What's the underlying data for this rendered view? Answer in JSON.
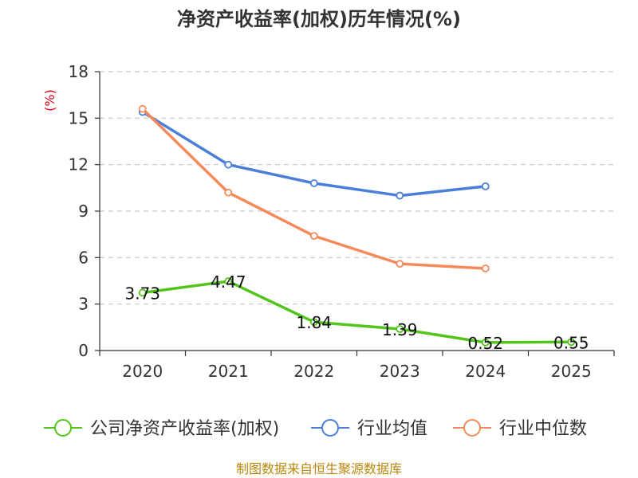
{
  "chart_data": {
    "type": "line",
    "title": "净资产收益率(加权)历年情况(%)",
    "ylabel": "(%)",
    "xlabel": "",
    "categories": [
      "2020",
      "2021",
      "2022",
      "2023",
      "2024",
      "2025"
    ],
    "y_ticks": [
      0,
      3,
      6,
      9,
      12,
      15,
      18
    ],
    "ylim": [
      0,
      18
    ],
    "grid": true,
    "legend_position": "bottom",
    "series": [
      {
        "name": "公司净资产收益率(加权)",
        "color": "#52c41a",
        "values": [
          3.73,
          4.47,
          1.84,
          1.39,
          0.52,
          0.55
        ],
        "labels": [
          "3.73",
          "4.47",
          "1.84",
          "1.39",
          "0.52",
          "0.55"
        ]
      },
      {
        "name": "行业均值",
        "color": "#4a7fd9",
        "values": [
          15.4,
          12.0,
          10.8,
          10.0,
          10.6,
          null
        ]
      },
      {
        "name": "行业中位数",
        "color": "#f5895a",
        "values": [
          15.6,
          10.2,
          7.4,
          5.6,
          5.3,
          null
        ]
      }
    ]
  },
  "source": "制图数据来自恒生聚源数据库"
}
